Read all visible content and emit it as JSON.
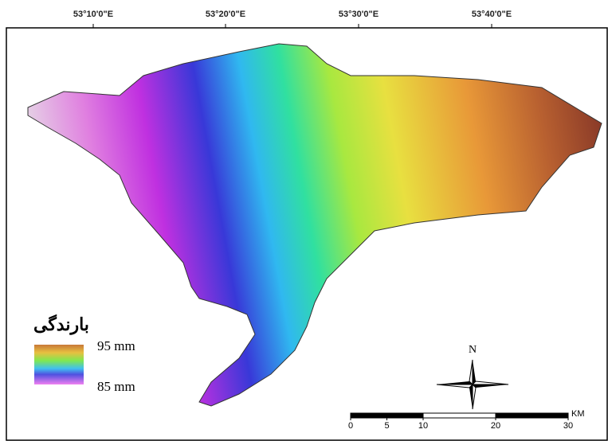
{
  "longitude_labels": [
    "53°10'0\"E",
    "53°20'0\"E",
    "53°30'0\"E",
    "53°40'0\"E"
  ],
  "legend": {
    "title": "بارندگی",
    "max_label": "95 mm",
    "min_label": "85 mm"
  },
  "north_arrow": "N",
  "scale_bar": {
    "ticks": [
      0,
      5,
      10,
      20,
      30
    ],
    "unit": "KM"
  }
}
